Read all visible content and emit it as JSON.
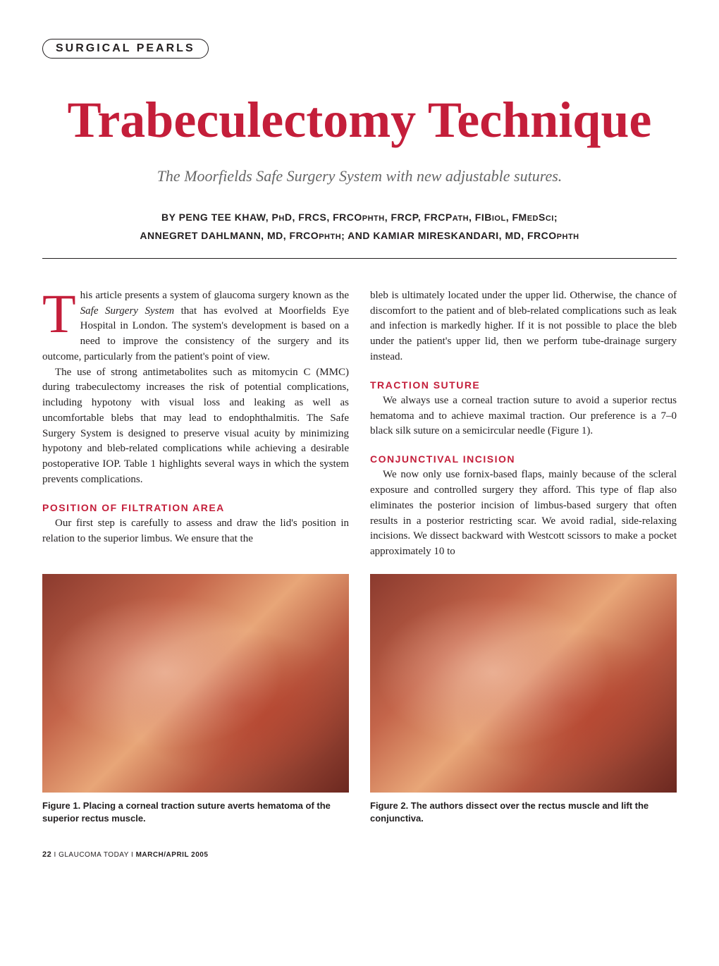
{
  "section_label": "SURGICAL PEARLS",
  "main_title": "Trabeculectomy Technique",
  "subtitle": "The Moorfields Safe Surgery System with new adjustable sutures.",
  "authors_line1": "BY PENG TEE KHAW, PHD, FRCS, FRCOPHTH, FRCP, FRCPATH, FIBIOL, FMEDSCI;",
  "authors_line2": "ANNEGRET DAHLMANN, MD, FRCOPHTH; AND KAMIAR MIRESKANDARI, MD, FRCOPHTH",
  "col1": {
    "p1_dropcap": "T",
    "p1_text": "his article presents a system of glaucoma surgery known as the Safe Surgery System that has evolved at Moorfields Eye Hospital in London. The system's development is based on a need to improve the consistency of the surgery and its outcome, particularly from the patient's point of view.",
    "p2": "The use of strong antimetabolites such as mitomycin C (MMC) during trabeculectomy increases the risk of potential complications, including hypotony with visual loss and leaking as well as uncomfortable blebs that may lead to endophthalmitis. The Safe Surgery System is designed to preserve visual acuity by minimizing hypotony and bleb-related complications while achieving a desirable postoperative IOP. Table 1 highlights several ways in which the system prevents complications.",
    "h1": "POSITION OF FILTRATION AREA",
    "p3": "Our first step is carefully to assess and draw the lid's position in relation to the superior limbus. We ensure that the"
  },
  "col2": {
    "p1": "bleb is ultimately located under the upper lid. Otherwise, the chance of discomfort to the patient and of bleb-related complications such as leak and infection is markedly higher. If it is not possible to place the bleb under the patient's upper lid, then we perform tube-drainage surgery instead.",
    "h1": "TRACTION SUTURE",
    "p2": "We always use a corneal traction suture to avoid a superior rectus hematoma and to achieve maximal traction. Our preference is a 7–0 black silk suture on a semicircular needle (Figure 1).",
    "h2": "CONJUNCTIVAL INCISION",
    "p3": "We now only use fornix-based flaps, mainly because of the scleral exposure and controlled surgery they afford. This type of flap also eliminates the posterior incision of limbus-based surgery that often results in a posterior restricting scar. We avoid radial, side-relaxing incisions. We dissect backward with Westcott scissors to make a pocket approximately 10 to"
  },
  "figure1_caption": "Figure 1.  Placing a corneal traction suture averts hematoma of the superior rectus muscle.",
  "figure2_caption": "Figure 2.  The authors dissect over the rectus muscle and lift the conjunctiva.",
  "footer": {
    "page_num": "22",
    "sep1": " I ",
    "pub_name": "GLAUCOMA TODAY",
    "sep2": " I ",
    "issue": "MARCH/APRIL 2005"
  },
  "colors": {
    "accent_red": "#c41e3a",
    "text": "#231f20",
    "subtitle_gray": "#666666",
    "background": "#ffffff"
  }
}
